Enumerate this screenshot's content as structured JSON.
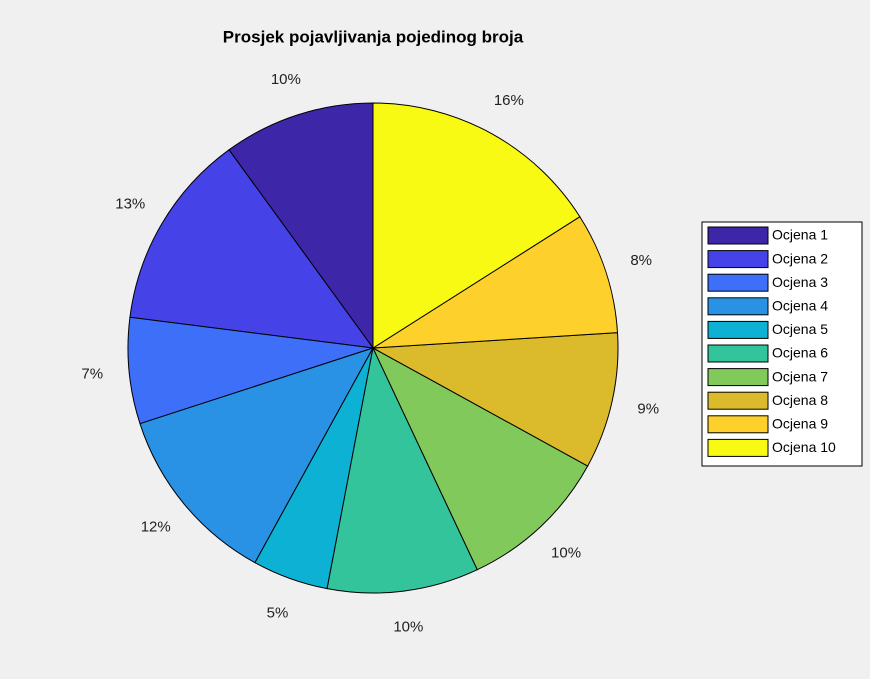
{
  "chart_data": {
    "type": "pie",
    "title": "Prosjek pojavljivanja pojedinog broja",
    "categories": [
      "Ocjena 1",
      "Ocjena 2",
      "Ocjena 3",
      "Ocjena 4",
      "Ocjena 5",
      "Ocjena 6",
      "Ocjena 7",
      "Ocjena 8",
      "Ocjena 9",
      "Ocjena 10"
    ],
    "values": [
      10,
      13,
      7,
      12,
      5,
      10,
      10,
      9,
      8,
      16
    ],
    "value_labels": [
      "10%",
      "13%",
      "7%",
      "12%",
      "5%",
      "10%",
      "10%",
      "9%",
      "8%",
      "16%"
    ],
    "colors": [
      "#3e26a8",
      "#4543e8",
      "#3d6ff9",
      "#2a92e5",
      "#0cb1d3",
      "#33c49c",
      "#82c95c",
      "#dbbb2b",
      "#fdd02b",
      "#f8fa14"
    ],
    "start_angle": 90,
    "direction": "counterclockwise",
    "legend": "right"
  }
}
